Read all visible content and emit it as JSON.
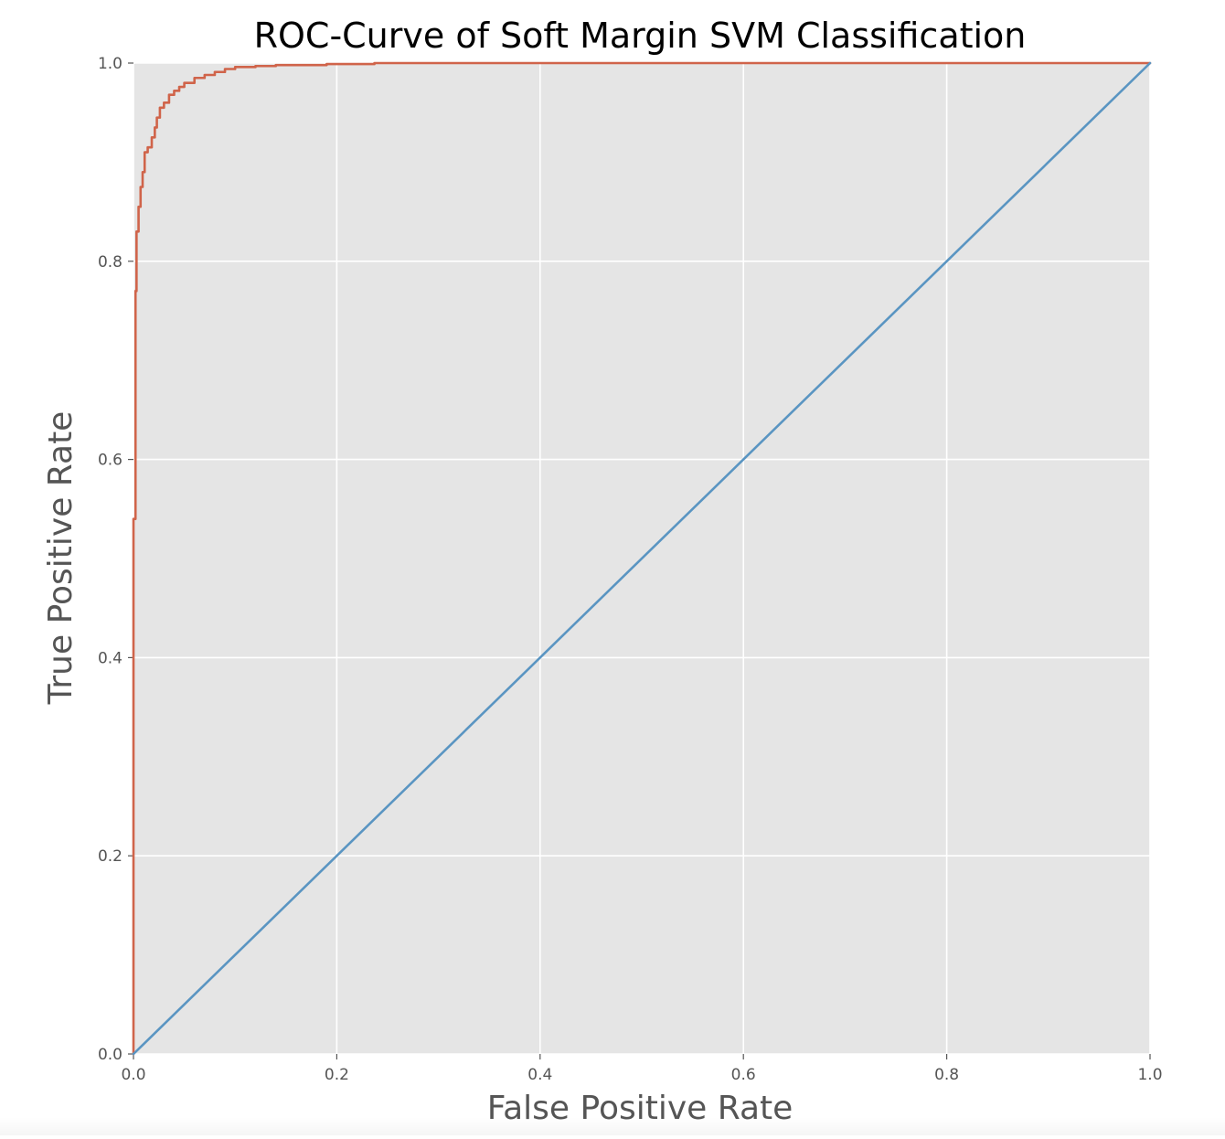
{
  "chart_data": {
    "type": "line",
    "title": "ROC-Curve of Soft Margin SVM Classification",
    "xlabel": "False Positive Rate",
    "ylabel": "True Positive Rate",
    "xlim": [
      0.0,
      1.0
    ],
    "ylim": [
      0.0,
      1.0
    ],
    "xticks": [
      "0.0",
      "0.2",
      "0.4",
      "0.6",
      "0.8",
      "1.0"
    ],
    "yticks": [
      "0.0",
      "0.2",
      "0.4",
      "0.6",
      "0.8",
      "1.0"
    ],
    "grid": true,
    "legend": "none",
    "series": [
      {
        "color": "#d0644a",
        "x": [
          0.0,
          0.0,
          0.002,
          0.002,
          0.003,
          0.003,
          0.005,
          0.005,
          0.007,
          0.007,
          0.009,
          0.009,
          0.011,
          0.011,
          0.014,
          0.014,
          0.018,
          0.018,
          0.021,
          0.021,
          0.023,
          0.023,
          0.026,
          0.026,
          0.03,
          0.03,
          0.035,
          0.035,
          0.04,
          0.04,
          0.045,
          0.045,
          0.05,
          0.05,
          0.06,
          0.06,
          0.07,
          0.07,
          0.08,
          0.08,
          0.09,
          0.09,
          0.1,
          0.1,
          0.12,
          0.12,
          0.14,
          0.14,
          0.19,
          0.19,
          0.237,
          0.237,
          1.0
        ],
        "y": [
          0.0,
          0.54,
          0.54,
          0.77,
          0.77,
          0.83,
          0.83,
          0.855,
          0.855,
          0.875,
          0.875,
          0.89,
          0.89,
          0.91,
          0.91,
          0.915,
          0.915,
          0.925,
          0.925,
          0.935,
          0.935,
          0.945,
          0.945,
          0.955,
          0.955,
          0.96,
          0.96,
          0.968,
          0.968,
          0.972,
          0.972,
          0.976,
          0.976,
          0.98,
          0.98,
          0.985,
          0.985,
          0.988,
          0.988,
          0.991,
          0.991,
          0.994,
          0.994,
          0.996,
          0.996,
          0.997,
          0.997,
          0.998,
          0.998,
          0.999,
          0.999,
          1.0,
          1.0
        ]
      },
      {
        "color": "#5a95c2",
        "x": [
          0.0,
          1.0
        ],
        "y": [
          0.0,
          1.0
        ]
      }
    ]
  },
  "colors": {
    "plot_background": "#e5e5e5",
    "grid": "#ffffff",
    "tick_label": "#555555",
    "axis_label": "#555555",
    "title": "#000000"
  }
}
